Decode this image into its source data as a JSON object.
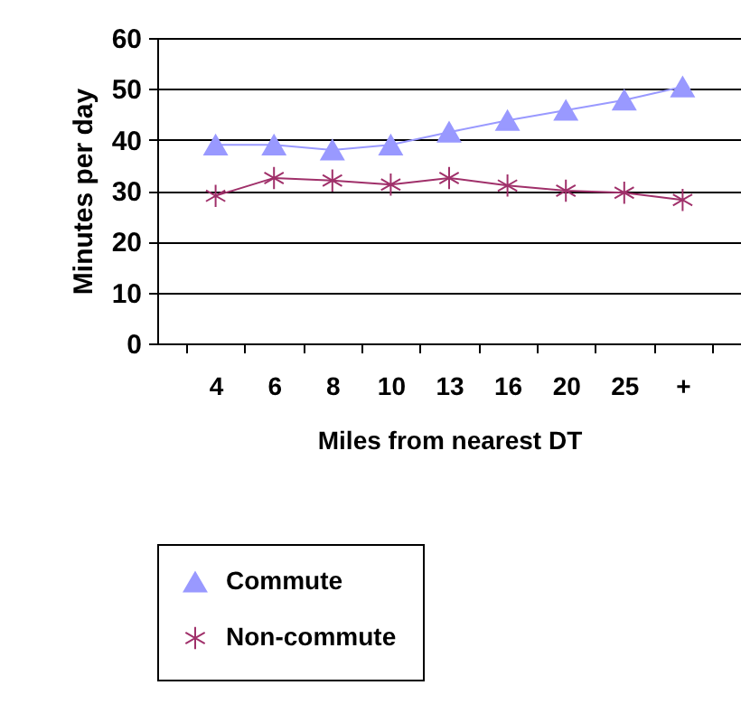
{
  "chart_data": {
    "type": "line",
    "xlabel": "Miles from nearest DT",
    "ylabel": "Minutes per day",
    "categories": [
      "4",
      "6",
      "8",
      "10",
      "13",
      "16",
      "20",
      "25",
      "+"
    ],
    "series": [
      {
        "name": "Commute",
        "color": "#9999ff",
        "marker": "triangle",
        "values": [
          39,
          39,
          38,
          39,
          41.5,
          43.8,
          45.8,
          47.8,
          50.4
        ]
      },
      {
        "name": "Non-commute",
        "color": "#a0306a",
        "marker": "cross",
        "values": [
          29,
          32.5,
          32,
          31.2,
          32.5,
          31,
          30,
          29.6,
          28.2
        ]
      }
    ],
    "ylim": [
      0,
      60
    ],
    "yticks": [
      0,
      10,
      20,
      30,
      40,
      50,
      60
    ],
    "grid": "y",
    "legend": "bottom"
  }
}
